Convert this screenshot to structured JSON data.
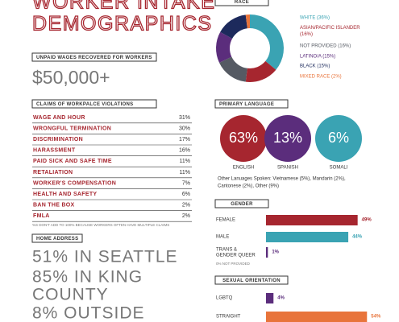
{
  "title": [
    "WORKER INTAKE",
    "DEMOGRAPHICS"
  ],
  "unpaid_wages": {
    "header": "UNPAID WAGES RECOVERED FOR WORKERS",
    "value": "$50,000+"
  },
  "violations": {
    "header": "CLAIMS OF WORKPALCE VIOLATIONS",
    "rows": [
      [
        "WAGE AND HOUR",
        "31%"
      ],
      [
        "WRONGFUL TERMINATION",
        "30%"
      ],
      [
        "DISCRIMINATION",
        "17%"
      ],
      [
        "HARASSMENT",
        "16%"
      ],
      [
        "PAID SICK AND SAFE TIME",
        "11%"
      ],
      [
        "RETALIATION",
        "11%"
      ],
      [
        "WORKER'S COMPENSATION",
        "7%"
      ],
      [
        "HEALTH AND SAFETY",
        "6%"
      ],
      [
        "BAN THE BOX",
        "2%"
      ],
      [
        "FMLA",
        "2%"
      ]
    ],
    "note": "%S DON'T ADD TO 100% BECAUSE WORKERS OFTEN HAVE MULTIPLE CLAIMS"
  },
  "home_address": {
    "header": "HOME ADDRESS",
    "lines": [
      "51% IN SEATTLE",
      "85% IN KING",
      "COUNTY",
      "8% OUTSIDE"
    ]
  },
  "chart_data": [
    {
      "type": "pie",
      "title": "RACE",
      "categories": [
        "WHITE (36%)",
        "ASIAN/PACIFIC ISLANDER (16%)",
        "NOT PROVIDED (16%)",
        "LATINO/A (15%)",
        "BLACK (15%)",
        "MIXED RACE (2%)"
      ],
      "values": [
        36,
        16,
        16,
        15,
        15,
        2
      ],
      "colors": [
        "#3aa3b3",
        "#a6262f",
        "#555a63",
        "#5b2d7c",
        "#1d2a5c",
        "#e8743b"
      ]
    },
    {
      "type": "circles",
      "title": "PRIMARY LANGUAGE",
      "categories": [
        "ENGLISH",
        "SPANISH",
        "SOMALI"
      ],
      "values": [
        63,
        13,
        6
      ],
      "value_labels": [
        "63%",
        "13%",
        "6%"
      ],
      "colors": [
        "#a6262f",
        "#5b2d7c",
        "#3aa3b3"
      ],
      "note": [
        "Other Lanuages Spoken: Vietnamese (5%), Mandarin (2%),",
        "Cantonese (2%), Other (9%)"
      ]
    },
    {
      "type": "hbar",
      "title": "GENDER",
      "categories": [
        "FEMALE",
        "MALE",
        "TRANS & GENDER QUEER"
      ],
      "values": [
        49,
        44,
        1
      ],
      "value_labels": [
        "49%",
        "44%",
        "1%"
      ],
      "colors": [
        "#a6262f",
        "#3aa3b3",
        "#5b2d7c"
      ],
      "note": "0% NOT PROVIDED"
    },
    {
      "type": "hbar",
      "title": "SEXUAL ORIENTATION",
      "categories": [
        "LGBTQ",
        "STRAIGHT"
      ],
      "values": [
        4,
        54
      ],
      "value_labels": [
        "4%",
        "54%"
      ],
      "colors": [
        "#5b2d7c",
        "#e8743b"
      ]
    }
  ]
}
